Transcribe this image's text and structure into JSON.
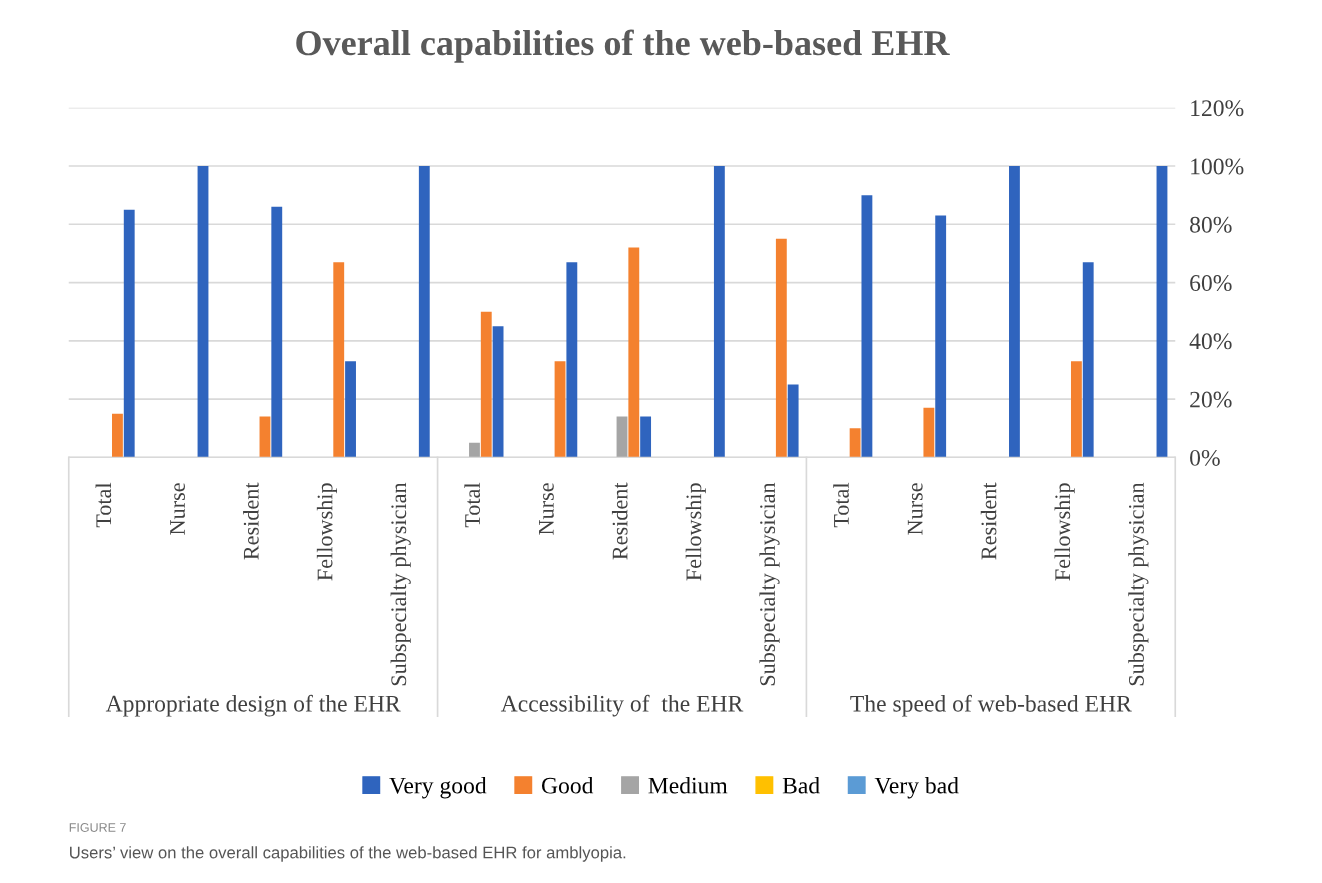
{
  "chart_data": {
    "type": "bar",
    "title": "Overall capabilities of the web-based EHR",
    "categories": [
      "Total",
      "Nurse",
      "Resident",
      "Fellowship",
      "Subspecialty physician",
      "Total",
      "Nurse",
      "Resident",
      "Fellowship",
      "Subspecialty physician",
      "Total",
      "Nurse",
      "Resident",
      "Fellowship",
      "Subspecialty physician"
    ],
    "series": [
      {
        "name": "Very bad",
        "color": "#5b9bd5",
        "values": [
          null,
          null,
          null,
          null,
          null,
          null,
          null,
          null,
          null,
          null,
          null,
          null,
          null,
          null,
          null
        ]
      },
      {
        "name": "Bad",
        "color": "#ffc000",
        "values": [
          null,
          null,
          null,
          null,
          null,
          null,
          null,
          null,
          null,
          null,
          null,
          null,
          null,
          null,
          null
        ]
      },
      {
        "name": "Medium",
        "color": "#a5a5a5",
        "values": [
          null,
          null,
          null,
          null,
          null,
          5,
          null,
          14,
          null,
          null,
          null,
          null,
          null,
          null,
          null
        ]
      },
      {
        "name": "Good",
        "color": "#f4812f",
        "values": [
          15,
          null,
          14,
          67,
          null,
          50,
          33,
          72,
          null,
          75,
          10,
          17,
          null,
          33,
          null
        ]
      },
      {
        "name": "Very good",
        "color": "#2f64be",
        "values": [
          85,
          100,
          86,
          33,
          100,
          45,
          67,
          14,
          100,
          25,
          90,
          83,
          100,
          67,
          100
        ]
      }
    ],
    "ylim": [
      0,
      120
    ],
    "yticks": [
      {
        "value": 0,
        "label": "0%"
      },
      {
        "value": 20,
        "label": "20%"
      },
      {
        "value": 40,
        "label": "40%"
      },
      {
        "value": 60,
        "label": "60%"
      },
      {
        "value": 80,
        "label": "80%"
      },
      {
        "value": 100,
        "label": "100%"
      },
      {
        "value": 120,
        "label": "120%"
      }
    ],
    "grid": "y",
    "legend": "bottom",
    "annotations": [
      "Appropriate design of the EHR",
      "Accessibility of  the EHR",
      "The speed of web-based EHR",
      "FIGURE 7",
      "Users’ view on the overall capabilities of the web-based EHR for amblyopia."
    ]
  }
}
